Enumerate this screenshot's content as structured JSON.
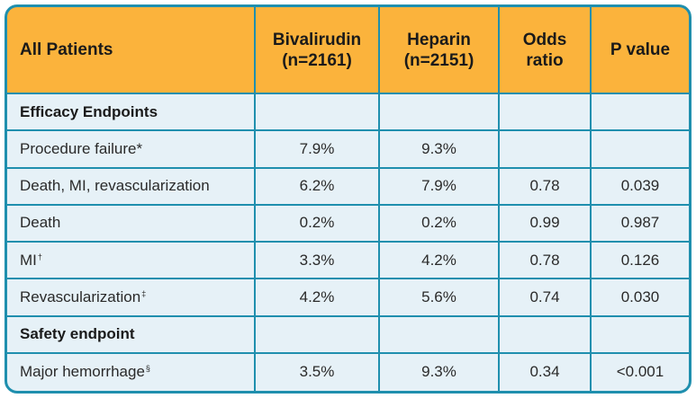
{
  "table": {
    "headers": [
      {
        "line1": "All Patients",
        "line2": ""
      },
      {
        "line1": "Bivalirudin",
        "line2": "(n=2161)"
      },
      {
        "line1": "Heparin",
        "line2": "(n=2151)"
      },
      {
        "line1": "Odds",
        "line2": "ratio"
      },
      {
        "line1": "P value",
        "line2": ""
      }
    ],
    "rows": [
      {
        "label": "Efficacy Endpoints",
        "sup": "",
        "biv": "",
        "hep": "",
        "or": "",
        "p": ""
      },
      {
        "label": "Procedure failure*",
        "sup": "",
        "biv": "7.9%",
        "hep": "9.3%",
        "or": "",
        "p": ""
      },
      {
        "label": "Death, MI, revascularization",
        "sup": "",
        "biv": "6.2%",
        "hep": "7.9%",
        "or": "0.78",
        "p": "0.039"
      },
      {
        "label": "Death",
        "sup": "",
        "biv": "0.2%",
        "hep": "0.2%",
        "or": "0.99",
        "p": "0.987"
      },
      {
        "label": "MI",
        "sup": "†",
        "biv": "3.3%",
        "hep": "4.2%",
        "or": "0.78",
        "p": "0.126"
      },
      {
        "label": "Revascularization",
        "sup": "‡",
        "biv": "4.2%",
        "hep": "5.6%",
        "or": "0.74",
        "p": "0.030"
      },
      {
        "label": "Safety endpoint",
        "sup": "",
        "biv": "",
        "hep": "",
        "or": "",
        "p": ""
      },
      {
        "label": "Major hemorrhage",
        "sup": "§",
        "biv": "3.5%",
        "hep": "9.3%",
        "or": "0.34",
        "p": "<0.001"
      }
    ]
  }
}
